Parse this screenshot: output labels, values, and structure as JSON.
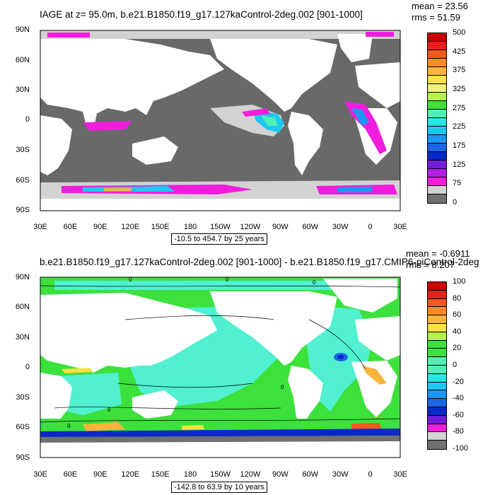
{
  "panel1": {
    "title": "IAGE at z=  95.0m, b.e21.B1850.f19_g17.127kaControl-2deg.002 [901-1000]",
    "mean": "mean = 23.56",
    "rms": "rms = 51.59",
    "range": "-10.5 to 454.7 by 25 years",
    "colorbar": {
      "labels": [
        "500",
        "425",
        "375",
        "325",
        "275",
        "225",
        "175",
        "125",
        "75",
        "0"
      ],
      "colors": [
        "#cc0000",
        "#e81e1e",
        "#f05a1e",
        "#f58c28",
        "#f9b43c",
        "#fde047",
        "#f0f080",
        "#b4f050",
        "#3ce13c",
        "#50f0b4",
        "#28e6e6",
        "#1ec8f0",
        "#1e96f0",
        "#1e64e6",
        "#0a28c8",
        "#6e1edc",
        "#b41ee6",
        "#f01edc",
        "#d2d2d2",
        "#707070"
      ]
    }
  },
  "panel2": {
    "title": "b.e21.B1850.f19_g17.127kaControl-2deg.002 [901-1000] - b.e21.B1850.f19_g17.CMIP6-piControl-2deg",
    "mean": "mean = -0.6911",
    "rms": "rms = 8.207",
    "range": "-142.8 to 63.9 by 10 years",
    "contour_label": "0",
    "colorbar": {
      "labels": [
        "100",
        "80",
        "60",
        "40",
        "20",
        "0",
        "-20",
        "-40",
        "-60",
        "-80",
        "-100"
      ],
      "colors": [
        "#cc0000",
        "#e81e1e",
        "#f05a1e",
        "#f58c28",
        "#f9b43c",
        "#fde047",
        "#b4f050",
        "#3ce13c",
        "#3ce13c",
        "#50f0b4",
        "#50f0b4",
        "#28e6e6",
        "#1ec8f0",
        "#1e96f0",
        "#1e64e6",
        "#0a28c8",
        "#6e1edc",
        "#f01edc",
        "#d2d2d2",
        "#707070"
      ]
    }
  },
  "axes": {
    "lat_labels": [
      "90N",
      "60N",
      "30N",
      "0",
      "30S",
      "60S",
      "90S"
    ],
    "lon_labels": [
      "30E",
      "60E",
      "90E",
      "120E",
      "150E",
      "180",
      "150W",
      "120W",
      "90W",
      "60W",
      "30W",
      "0",
      "30E"
    ]
  },
  "colors": {
    "land_gray": "#696969",
    "ocean_green": "#3ce13c",
    "ocean_cyan": "#50f0d0",
    "ice": "#d2d2d2"
  }
}
